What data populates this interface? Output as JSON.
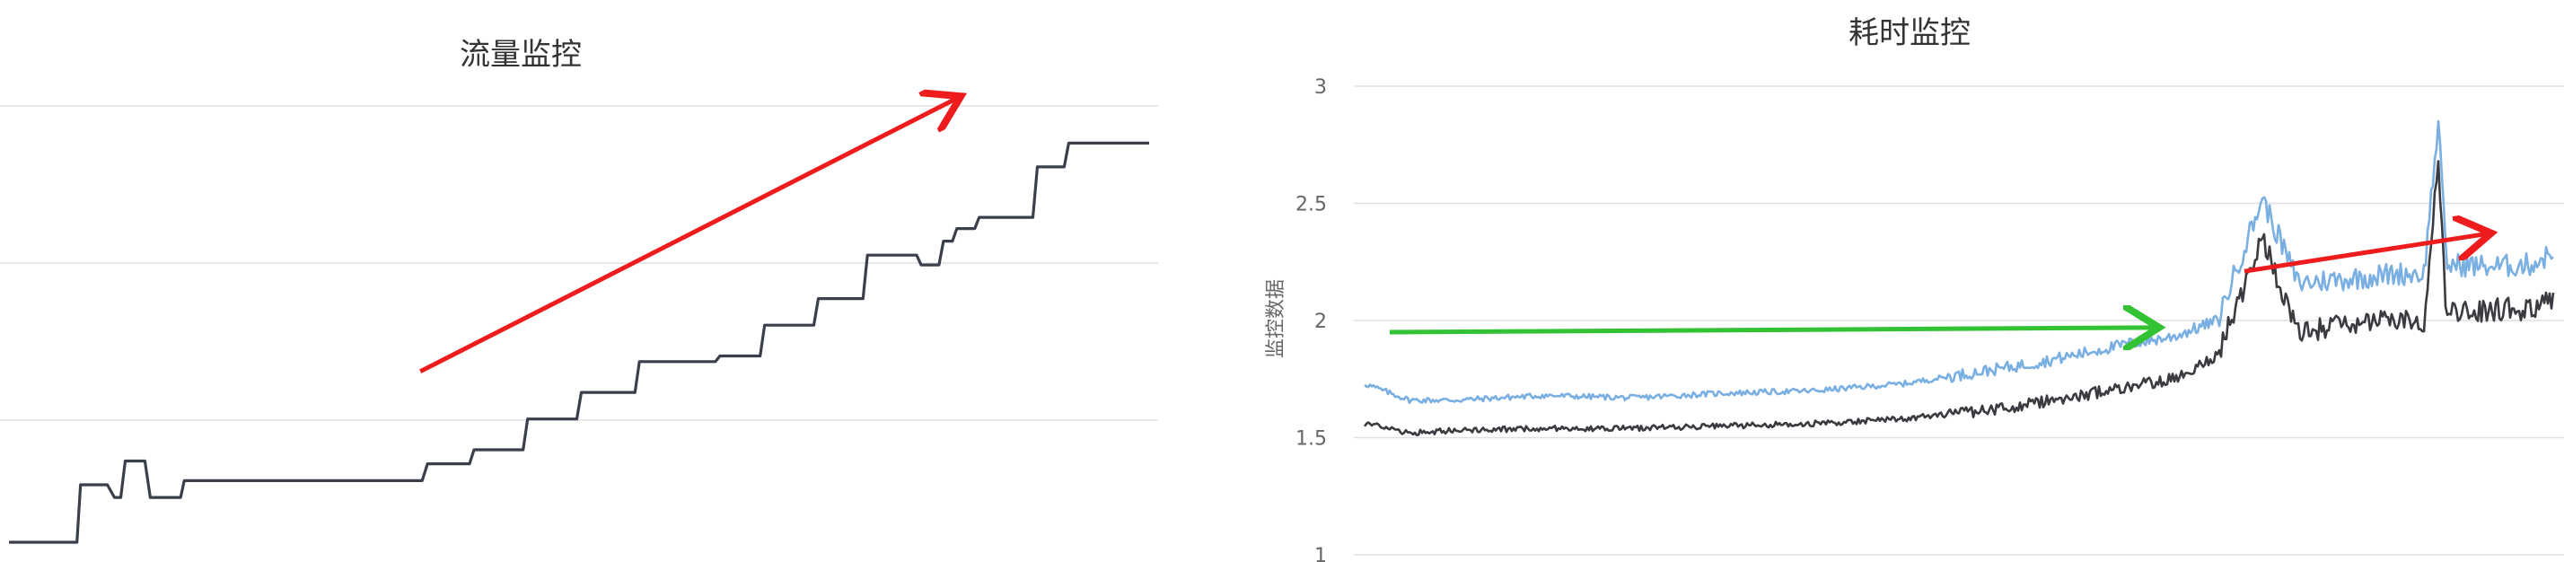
{
  "chart_data": [
    {
      "type": "line",
      "title": "流量监控",
      "xlabel": "",
      "ylabel": "",
      "grid": true,
      "legend": "none",
      "colors": {
        "line": "#3a3f4b",
        "arrow": "#ee1c1c"
      },
      "series": [
        {
          "points": [
            [
              0,
              0.0
            ],
            [
              10,
              0.0
            ],
            [
              50,
              0.0
            ],
            [
              76,
              0.0
            ],
            [
              80,
              0.41
            ],
            [
              110,
              0.41
            ],
            [
              118,
              0.32
            ],
            [
              125,
              0.32
            ],
            [
              130,
              0.58
            ],
            [
              152,
              0.58
            ],
            [
              158,
              0.32
            ],
            [
              192,
              0.32
            ],
            [
              196,
              0.44
            ],
            [
              300,
              0.44
            ],
            [
              400,
              0.44
            ],
            [
              462,
              0.44
            ],
            [
              468,
              0.56
            ],
            [
              515,
              0.56
            ],
            [
              520,
              0.66
            ],
            [
              575,
              0.66
            ],
            [
              580,
              0.88
            ],
            [
              635,
              0.88
            ],
            [
              640,
              1.07
            ],
            [
              700,
              1.07
            ],
            [
              705,
              1.29
            ],
            [
              790,
              1.29
            ],
            [
              795,
              1.33
            ],
            [
              840,
              1.33
            ],
            [
              845,
              1.55
            ],
            [
              900,
              1.55
            ],
            [
              905,
              1.74
            ],
            [
              955,
              1.74
            ],
            [
              960,
              2.05
            ],
            [
              1015,
              2.05
            ],
            [
              1020,
              1.98
            ],
            [
              1040,
              1.98
            ],
            [
              1045,
              2.15
            ],
            [
              1055,
              2.15
            ],
            [
              1060,
              2.24
            ],
            [
              1080,
              2.24
            ],
            [
              1085,
              2.32
            ],
            [
              1145,
              2.32
            ],
            [
              1150,
              2.68
            ],
            [
              1180,
              2.68
            ],
            [
              1185,
              2.85
            ],
            [
              1275,
              2.85
            ]
          ]
        }
      ],
      "annotations": [
        {
          "type": "arrow",
          "color": "#ee1c1c",
          "from": [
            460,
            1.22
          ],
          "to": [
            1060,
            3.17
          ]
        }
      ]
    },
    {
      "type": "line",
      "title": "耗时监控",
      "xlabel": "",
      "ylabel": "监控数据",
      "ylim": [
        1,
        3
      ],
      "yticks": [
        "3",
        "2.5",
        "2",
        "1.5",
        "1"
      ],
      "grid": true,
      "legend": "none",
      "colors": {
        "series_light": "#7aafe2",
        "series_dark": "#3a3b40",
        "green_arrow": "#33c233",
        "red_arrow": "#ee1c1c"
      },
      "series": [
        {
          "color": "#7aafe2",
          "points": [
            [
              0,
              1.73
            ],
            [
              50,
              1.66
            ],
            [
              100,
              1.66
            ],
            [
              200,
              1.68
            ],
            [
              300,
              1.67
            ],
            [
              400,
              1.69
            ],
            [
              500,
              1.7
            ],
            [
              600,
              1.73
            ],
            [
              650,
              1.76
            ],
            [
              700,
              1.79
            ],
            [
              750,
              1.82
            ],
            [
              800,
              1.86
            ],
            [
              850,
              1.9
            ],
            [
              900,
              1.93
            ],
            [
              950,
              2.0
            ],
            [
              1000,
              2.52
            ],
            [
              1040,
              2.16
            ],
            [
              1100,
              2.18
            ],
            [
              1150,
              2.2
            ],
            [
              1180,
              2.2
            ],
            [
              1196,
              2.85
            ],
            [
              1205,
              2.24
            ],
            [
              1260,
              2.23
            ],
            [
              1300,
              2.24
            ],
            [
              1325,
              2.29
            ]
          ]
        },
        {
          "color": "#3a3b40",
          "points": [
            [
              0,
              1.56
            ],
            [
              50,
              1.52
            ],
            [
              100,
              1.53
            ],
            [
              200,
              1.54
            ],
            [
              300,
              1.54
            ],
            [
              400,
              1.55
            ],
            [
              500,
              1.56
            ],
            [
              600,
              1.58
            ],
            [
              650,
              1.6
            ],
            [
              700,
              1.62
            ],
            [
              750,
              1.65
            ],
            [
              800,
              1.68
            ],
            [
              850,
              1.72
            ],
            [
              900,
              1.75
            ],
            [
              950,
              1.85
            ],
            [
              1000,
              2.35
            ],
            [
              1040,
              1.95
            ],
            [
              1100,
              1.98
            ],
            [
              1150,
              2.0
            ],
            [
              1180,
              2.0
            ],
            [
              1196,
              2.68
            ],
            [
              1205,
              2.03
            ],
            [
              1260,
              2.05
            ],
            [
              1300,
              2.05
            ],
            [
              1325,
              2.1
            ]
          ]
        }
      ],
      "annotations": [
        {
          "type": "arrow",
          "color": "#33c233",
          "from": [
            28,
            1.95
          ],
          "to": [
            880,
            1.97
          ]
        },
        {
          "type": "arrow",
          "color": "#ee1c1c",
          "from": [
            980,
            2.21
          ],
          "to": [
            1250,
            2.37
          ]
        }
      ]
    }
  ]
}
